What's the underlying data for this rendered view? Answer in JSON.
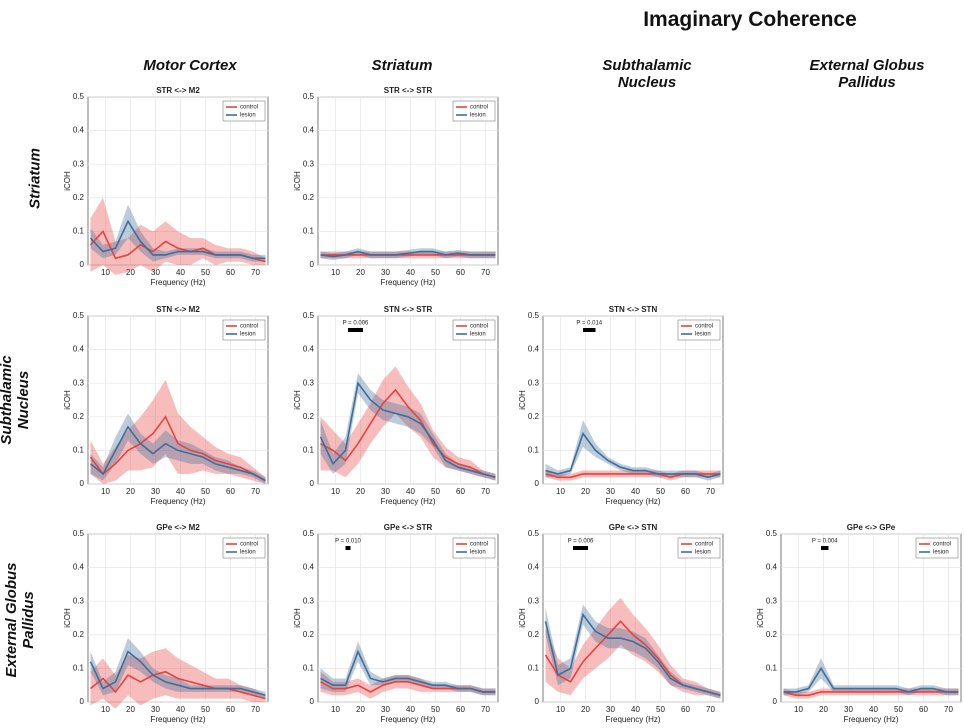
{
  "title": "Imaginary Coherence",
  "column_labels": [
    "Motor Cortex",
    "Striatum",
    "Subthalamic Nucleus",
    "External Globus Pallidus"
  ],
  "row_labels": [
    "Striatum",
    "Subthalamic Nucleus",
    "External Globus Pallidus"
  ],
  "chart_data": [
    {
      "type": "line",
      "title": "STR <-> M2",
      "xlabel": "Frequency (Hz)",
      "ylabel": "iCOH",
      "xlim": [
        3,
        75
      ],
      "ylim": [
        0,
        0.5
      ],
      "xticks": [
        10,
        20,
        30,
        40,
        50,
        60,
        70
      ],
      "yticks": [
        0,
        0.1,
        0.2,
        0.3,
        0.4,
        0.5
      ],
      "grid": true,
      "x": [
        4,
        9,
        14,
        19,
        24,
        29,
        34,
        39,
        44,
        49,
        54,
        59,
        64,
        69,
        74
      ],
      "series": [
        {
          "name": "control",
          "color": "#e8423f",
          "values": [
            0.06,
            0.1,
            0.02,
            0.03,
            0.06,
            0.04,
            0.07,
            0.05,
            0.04,
            0.05,
            0.03,
            0.03,
            0.03,
            0.02,
            0.01
          ],
          "error": [
            0.08,
            0.1,
            0.05,
            0.05,
            0.06,
            0.06,
            0.06,
            0.05,
            0.04,
            0.03,
            0.03,
            0.02,
            0.02,
            0.02,
            0.01
          ]
        },
        {
          "name": "lesion",
          "color": "#3f6e9a",
          "values": [
            0.08,
            0.04,
            0.05,
            0.13,
            0.07,
            0.03,
            0.03,
            0.04,
            0.04,
            0.04,
            0.03,
            0.03,
            0.03,
            0.02,
            0.02
          ],
          "error": [
            0.03,
            0.02,
            0.02,
            0.05,
            0.03,
            0.02,
            0.01,
            0.01,
            0.01,
            0.01,
            0.01,
            0.01,
            0.01,
            0.01,
            0.01
          ]
        }
      ]
    },
    {
      "type": "line",
      "title": "STR <-> STR",
      "xlabel": "Frequency (Hz)",
      "ylabel": "iCOH",
      "xlim": [
        3,
        75
      ],
      "ylim": [
        0,
        0.5
      ],
      "xticks": [
        10,
        20,
        30,
        40,
        50,
        60,
        70
      ],
      "yticks": [
        0,
        0.1,
        0.2,
        0.3,
        0.4,
        0.5
      ],
      "grid": true,
      "x": [
        4,
        9,
        14,
        19,
        24,
        29,
        34,
        39,
        44,
        49,
        54,
        59,
        64,
        69,
        74
      ],
      "series": [
        {
          "name": "control",
          "color": "#e8423f",
          "values": [
            0.03,
            0.03,
            0.03,
            0.03,
            0.03,
            0.03,
            0.03,
            0.03,
            0.03,
            0.03,
            0.03,
            0.03,
            0.03,
            0.03,
            0.03
          ],
          "error": [
            0.01,
            0.01,
            0.01,
            0.01,
            0.01,
            0.01,
            0.01,
            0.01,
            0.01,
            0.01,
            0.01,
            0.01,
            0.01,
            0.01,
            0.01
          ]
        },
        {
          "name": "lesion",
          "color": "#3f6e9a",
          "values": [
            0.03,
            0.025,
            0.03,
            0.04,
            0.03,
            0.03,
            0.03,
            0.035,
            0.04,
            0.04,
            0.03,
            0.035,
            0.03,
            0.03,
            0.03
          ],
          "error": [
            0.01,
            0.01,
            0.01,
            0.01,
            0.01,
            0.01,
            0.01,
            0.01,
            0.01,
            0.01,
            0.01,
            0.01,
            0.01,
            0.01,
            0.01
          ]
        }
      ]
    },
    {
      "type": "line",
      "title": "STN <-> M2",
      "xlabel": "Frequency (Hz)",
      "ylabel": "iCOH",
      "xlim": [
        3,
        75
      ],
      "ylim": [
        0,
        0.5
      ],
      "xticks": [
        10,
        20,
        30,
        40,
        50,
        60,
        70
      ],
      "yticks": [
        0,
        0.1,
        0.2,
        0.3,
        0.4,
        0.5
      ],
      "grid": true,
      "x": [
        4,
        9,
        14,
        19,
        24,
        29,
        34,
        39,
        44,
        49,
        54,
        59,
        64,
        69,
        74
      ],
      "series": [
        {
          "name": "control",
          "color": "#e8423f",
          "values": [
            0.08,
            0.03,
            0.06,
            0.1,
            0.12,
            0.15,
            0.2,
            0.12,
            0.1,
            0.09,
            0.07,
            0.06,
            0.05,
            0.03,
            0.01
          ],
          "error": [
            0.05,
            0.03,
            0.05,
            0.06,
            0.08,
            0.1,
            0.11,
            0.09,
            0.07,
            0.05,
            0.04,
            0.03,
            0.03,
            0.02,
            0.01
          ]
        },
        {
          "name": "lesion",
          "color": "#3f6e9a",
          "values": [
            0.06,
            0.03,
            0.1,
            0.17,
            0.12,
            0.09,
            0.12,
            0.1,
            0.09,
            0.08,
            0.06,
            0.05,
            0.04,
            0.03,
            0.01
          ],
          "error": [
            0.03,
            0.02,
            0.04,
            0.04,
            0.03,
            0.03,
            0.04,
            0.03,
            0.03,
            0.02,
            0.02,
            0.02,
            0.01,
            0.01,
            0.01
          ]
        }
      ]
    },
    {
      "type": "line",
      "title": "STN <-> STR",
      "xlabel": "Frequency (Hz)",
      "ylabel": "iCOH",
      "xlim": [
        3,
        75
      ],
      "ylim": [
        0,
        0.5
      ],
      "xticks": [
        10,
        20,
        30,
        40,
        50,
        60,
        70
      ],
      "yticks": [
        0,
        0.1,
        0.2,
        0.3,
        0.4,
        0.5
      ],
      "grid": true,
      "significance": {
        "label": "P = 0.006",
        "x": [
          15,
          21
        ]
      },
      "x": [
        4,
        9,
        14,
        19,
        24,
        29,
        34,
        39,
        44,
        49,
        54,
        59,
        64,
        69,
        74
      ],
      "series": [
        {
          "name": "control",
          "color": "#e8423f",
          "values": [
            0.12,
            0.1,
            0.07,
            0.12,
            0.18,
            0.24,
            0.28,
            0.23,
            0.19,
            0.12,
            0.08,
            0.06,
            0.05,
            0.03,
            0.02
          ],
          "error": [
            0.08,
            0.06,
            0.05,
            0.06,
            0.06,
            0.07,
            0.07,
            0.06,
            0.05,
            0.04,
            0.03,
            0.02,
            0.02,
            0.01,
            0.01
          ]
        },
        {
          "name": "lesion",
          "color": "#3f6e9a",
          "values": [
            0.14,
            0.06,
            0.1,
            0.3,
            0.25,
            0.22,
            0.21,
            0.2,
            0.18,
            0.13,
            0.07,
            0.05,
            0.04,
            0.03,
            0.02
          ],
          "error": [
            0.05,
            0.03,
            0.04,
            0.03,
            0.03,
            0.03,
            0.03,
            0.03,
            0.03,
            0.02,
            0.02,
            0.01,
            0.01,
            0.01,
            0.01
          ]
        }
      ]
    },
    {
      "type": "line",
      "title": "STN <-> STN",
      "xlabel": "Frequency (Hz)",
      "ylabel": "iCOH",
      "xlim": [
        3,
        75
      ],
      "ylim": [
        0,
        0.5
      ],
      "xticks": [
        10,
        20,
        30,
        40,
        50,
        60,
        70
      ],
      "yticks": [
        0,
        0.1,
        0.2,
        0.3,
        0.4,
        0.5
      ],
      "grid": true,
      "significance": {
        "label": "P = 0.014",
        "x": [
          19,
          24
        ]
      },
      "x": [
        4,
        9,
        14,
        19,
        24,
        29,
        34,
        39,
        44,
        49,
        54,
        59,
        64,
        69,
        74
      ],
      "series": [
        {
          "name": "control",
          "color": "#e8423f",
          "values": [
            0.03,
            0.02,
            0.02,
            0.03,
            0.03,
            0.03,
            0.03,
            0.03,
            0.03,
            0.03,
            0.02,
            0.03,
            0.03,
            0.03,
            0.03
          ],
          "error": [
            0.01,
            0.01,
            0.01,
            0.01,
            0.01,
            0.01,
            0.01,
            0.01,
            0.01,
            0.01,
            0.01,
            0.01,
            0.01,
            0.01,
            0.01
          ]
        },
        {
          "name": "lesion",
          "color": "#3f6e9a",
          "values": [
            0.04,
            0.03,
            0.04,
            0.15,
            0.1,
            0.07,
            0.05,
            0.04,
            0.04,
            0.03,
            0.03,
            0.03,
            0.03,
            0.02,
            0.03
          ],
          "error": [
            0.02,
            0.01,
            0.01,
            0.04,
            0.02,
            0.01,
            0.01,
            0.01,
            0.01,
            0.01,
            0.01,
            0.01,
            0.01,
            0.01,
            0.01
          ]
        }
      ]
    },
    {
      "type": "line",
      "title": "GPe <-> M2",
      "xlabel": "Frequency (Hz)",
      "ylabel": "iCOH",
      "xlim": [
        3,
        75
      ],
      "ylim": [
        0,
        0.5
      ],
      "xticks": [
        10,
        20,
        30,
        40,
        50,
        60,
        70
      ],
      "yticks": [
        0,
        0.1,
        0.2,
        0.3,
        0.4,
        0.5
      ],
      "grid": true,
      "x": [
        4,
        9,
        14,
        19,
        24,
        29,
        34,
        39,
        44,
        49,
        54,
        59,
        64,
        69,
        74
      ],
      "series": [
        {
          "name": "control",
          "color": "#e8423f",
          "values": [
            0.04,
            0.07,
            0.03,
            0.08,
            0.06,
            0.08,
            0.09,
            0.07,
            0.06,
            0.05,
            0.04,
            0.04,
            0.03,
            0.02,
            0.01
          ],
          "error": [
            0.05,
            0.06,
            0.05,
            0.06,
            0.07,
            0.07,
            0.07,
            0.06,
            0.05,
            0.04,
            0.03,
            0.03,
            0.02,
            0.02,
            0.01
          ]
        },
        {
          "name": "lesion",
          "color": "#3f6e9a",
          "values": [
            0.12,
            0.04,
            0.06,
            0.15,
            0.12,
            0.08,
            0.06,
            0.05,
            0.04,
            0.04,
            0.04,
            0.04,
            0.04,
            0.03,
            0.02
          ],
          "error": [
            0.03,
            0.02,
            0.03,
            0.04,
            0.03,
            0.02,
            0.02,
            0.02,
            0.01,
            0.01,
            0.01,
            0.01,
            0.01,
            0.01,
            0.01
          ]
        }
      ]
    },
    {
      "type": "line",
      "title": "GPe <-> STR",
      "xlabel": "Frequency (Hz)",
      "ylabel": "iCOH",
      "xlim": [
        3,
        75
      ],
      "ylim": [
        0,
        0.5
      ],
      "xticks": [
        10,
        20,
        30,
        40,
        50,
        60,
        70
      ],
      "yticks": [
        0,
        0.1,
        0.2,
        0.3,
        0.4,
        0.5
      ],
      "grid": true,
      "significance": {
        "label": "P = 0.010",
        "x": [
          14,
          16
        ]
      },
      "x": [
        4,
        9,
        14,
        19,
        24,
        29,
        34,
        39,
        44,
        49,
        54,
        59,
        64,
        69,
        74
      ],
      "series": [
        {
          "name": "control",
          "color": "#e8423f",
          "values": [
            0.06,
            0.04,
            0.04,
            0.05,
            0.03,
            0.05,
            0.06,
            0.06,
            0.05,
            0.04,
            0.04,
            0.04,
            0.04,
            0.03,
            0.03
          ],
          "error": [
            0.03,
            0.02,
            0.02,
            0.02,
            0.02,
            0.02,
            0.02,
            0.02,
            0.02,
            0.01,
            0.01,
            0.01,
            0.01,
            0.01,
            0.01
          ]
        },
        {
          "name": "lesion",
          "color": "#3f6e9a",
          "values": [
            0.07,
            0.05,
            0.05,
            0.15,
            0.07,
            0.06,
            0.07,
            0.07,
            0.06,
            0.05,
            0.05,
            0.04,
            0.04,
            0.03,
            0.03
          ],
          "error": [
            0.03,
            0.02,
            0.02,
            0.03,
            0.02,
            0.01,
            0.01,
            0.01,
            0.01,
            0.01,
            0.01,
            0.01,
            0.01,
            0.01,
            0.01
          ]
        }
      ]
    },
    {
      "type": "line",
      "title": "GPe <-> STN",
      "xlabel": "Frequency (Hz)",
      "ylabel": "iCOH",
      "xlim": [
        3,
        75
      ],
      "ylim": [
        0,
        0.5
      ],
      "xticks": [
        10,
        20,
        30,
        40,
        50,
        60,
        70
      ],
      "yticks": [
        0,
        0.1,
        0.2,
        0.3,
        0.4,
        0.5
      ],
      "grid": true,
      "significance": {
        "label": "P = 0.006",
        "x": [
          15,
          21
        ]
      },
      "x": [
        4,
        9,
        14,
        19,
        24,
        29,
        34,
        39,
        44,
        49,
        54,
        59,
        64,
        69,
        74
      ],
      "series": [
        {
          "name": "control",
          "color": "#e8423f",
          "values": [
            0.14,
            0.08,
            0.06,
            0.12,
            0.16,
            0.2,
            0.24,
            0.2,
            0.17,
            0.13,
            0.08,
            0.05,
            0.04,
            0.03,
            0.02
          ],
          "error": [
            0.08,
            0.05,
            0.04,
            0.05,
            0.06,
            0.07,
            0.07,
            0.06,
            0.05,
            0.04,
            0.03,
            0.02,
            0.02,
            0.01,
            0.01
          ]
        },
        {
          "name": "lesion",
          "color": "#3f6e9a",
          "values": [
            0.24,
            0.08,
            0.1,
            0.26,
            0.21,
            0.19,
            0.19,
            0.18,
            0.16,
            0.12,
            0.07,
            0.05,
            0.04,
            0.03,
            0.02
          ],
          "error": [
            0.04,
            0.03,
            0.03,
            0.03,
            0.03,
            0.03,
            0.03,
            0.03,
            0.03,
            0.02,
            0.02,
            0.01,
            0.01,
            0.01,
            0.01
          ]
        }
      ]
    },
    {
      "type": "line",
      "title": "GPe <-> GPe",
      "xlabel": "Frequency (Hz)",
      "ylabel": "iCOH",
      "xlim": [
        3,
        75
      ],
      "ylim": [
        0,
        0.5
      ],
      "xticks": [
        10,
        20,
        30,
        40,
        50,
        60,
        70
      ],
      "yticks": [
        0,
        0.1,
        0.2,
        0.3,
        0.4,
        0.5
      ],
      "grid": true,
      "significance": {
        "label": "P = 0.004",
        "x": [
          19,
          22
        ]
      },
      "x": [
        4,
        9,
        14,
        19,
        24,
        29,
        34,
        39,
        44,
        49,
        54,
        59,
        64,
        69,
        74
      ],
      "series": [
        {
          "name": "control",
          "color": "#e8423f",
          "values": [
            0.03,
            0.02,
            0.02,
            0.03,
            0.03,
            0.03,
            0.03,
            0.03,
            0.03,
            0.03,
            0.03,
            0.03,
            0.03,
            0.03,
            0.03
          ],
          "error": [
            0.01,
            0.01,
            0.01,
            0.01,
            0.01,
            0.01,
            0.01,
            0.01,
            0.01,
            0.01,
            0.01,
            0.01,
            0.01,
            0.01,
            0.01
          ]
        },
        {
          "name": "lesion",
          "color": "#3f6e9a",
          "values": [
            0.03,
            0.03,
            0.04,
            0.1,
            0.04,
            0.04,
            0.04,
            0.04,
            0.04,
            0.04,
            0.03,
            0.04,
            0.04,
            0.03,
            0.03
          ],
          "error": [
            0.01,
            0.01,
            0.01,
            0.03,
            0.01,
            0.01,
            0.01,
            0.01,
            0.01,
            0.01,
            0.01,
            0.01,
            0.01,
            0.01,
            0.01
          ]
        }
      ]
    }
  ]
}
